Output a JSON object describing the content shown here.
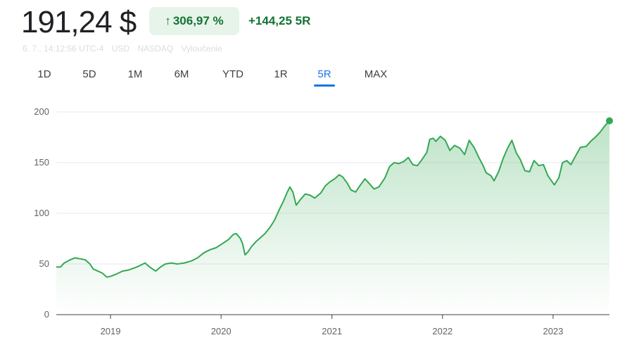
{
  "header": {
    "price": "191,24 $",
    "change_percent": "306,97 %",
    "change_arrow_icon": "arrow-up-icon",
    "change_abs": "+144,25 5R",
    "meta": {
      "datetime": "6. 7., 14:12:56 UTC-4",
      "currency": "USD",
      "exchange": "NASDAQ",
      "disclaimer": "Vyloučenie"
    }
  },
  "tabs": [
    {
      "label": "1D"
    },
    {
      "label": "5D"
    },
    {
      "label": "1M"
    },
    {
      "label": "6M"
    },
    {
      "label": "YTD"
    },
    {
      "label": "1R"
    },
    {
      "label": "5R",
      "active": true
    },
    {
      "label": "MAX"
    }
  ],
  "colors": {
    "line": "#34a853",
    "area_top": "#34a853",
    "positive_text": "#137333",
    "badge_bg": "#e6f4ea",
    "active_tab": "#1a73e8"
  },
  "chart_data": {
    "type": "area",
    "title": "",
    "xlabel": "",
    "ylabel": "",
    "ylim": [
      0,
      200
    ],
    "yticks": [
      0,
      50,
      100,
      150,
      200
    ],
    "xticks": [
      "2019",
      "2020",
      "2021",
      "2022",
      "2023"
    ],
    "xlim": [
      "2018-07-06",
      "2023-07-06"
    ],
    "grid": true,
    "series": [
      {
        "name": "",
        "points": [
          [
            "2018-07-06",
            47
          ],
          [
            "2018-07-20",
            47
          ],
          [
            "2018-08-01",
            51
          ],
          [
            "2018-08-20",
            54
          ],
          [
            "2018-09-05",
            56
          ],
          [
            "2018-09-25",
            55
          ],
          [
            "2018-10-10",
            54
          ],
          [
            "2018-10-25",
            50
          ],
          [
            "2018-11-05",
            45
          ],
          [
            "2018-11-20",
            43
          ],
          [
            "2018-12-05",
            41
          ],
          [
            "2018-12-20",
            37
          ],
          [
            "2019-01-03",
            38
          ],
          [
            "2019-01-20",
            40
          ],
          [
            "2019-02-10",
            43
          ],
          [
            "2019-03-01",
            44
          ],
          [
            "2019-03-20",
            46
          ],
          [
            "2019-04-05",
            48
          ],
          [
            "2019-04-25",
            51
          ],
          [
            "2019-05-10",
            47
          ],
          [
            "2019-05-30",
            43
          ],
          [
            "2019-06-15",
            47
          ],
          [
            "2019-07-01",
            50
          ],
          [
            "2019-07-20",
            51
          ],
          [
            "2019-08-10",
            50
          ],
          [
            "2019-09-01",
            51
          ],
          [
            "2019-09-25",
            53
          ],
          [
            "2019-10-15",
            56
          ],
          [
            "2019-11-05",
            61
          ],
          [
            "2019-11-25",
            64
          ],
          [
            "2019-12-15",
            66
          ],
          [
            "2020-01-05",
            70
          ],
          [
            "2020-01-25",
            74
          ],
          [
            "2020-02-10",
            79
          ],
          [
            "2020-02-20",
            80
          ],
          [
            "2020-03-05",
            75
          ],
          [
            "2020-03-12",
            70
          ],
          [
            "2020-03-20",
            59
          ],
          [
            "2020-03-30",
            62
          ],
          [
            "2020-04-10",
            67
          ],
          [
            "2020-04-25",
            72
          ],
          [
            "2020-05-10",
            76
          ],
          [
            "2020-05-25",
            80
          ],
          [
            "2020-06-10",
            86
          ],
          [
            "2020-06-25",
            93
          ],
          [
            "2020-07-10",
            103
          ],
          [
            "2020-07-25",
            112
          ],
          [
            "2020-08-05",
            120
          ],
          [
            "2020-08-15",
            126
          ],
          [
            "2020-08-25",
            121
          ],
          [
            "2020-09-05",
            108
          ],
          [
            "2020-09-20",
            114
          ],
          [
            "2020-10-05",
            119
          ],
          [
            "2020-10-20",
            118
          ],
          [
            "2020-11-05",
            115
          ],
          [
            "2020-11-25",
            120
          ],
          [
            "2020-12-10",
            127
          ],
          [
            "2020-12-25",
            131
          ],
          [
            "2021-01-10",
            134
          ],
          [
            "2021-01-25",
            138
          ],
          [
            "2021-02-05",
            136
          ],
          [
            "2021-02-20",
            130
          ],
          [
            "2021-03-05",
            123
          ],
          [
            "2021-03-20",
            121
          ],
          [
            "2021-04-05",
            128
          ],
          [
            "2021-04-20",
            134
          ],
          [
            "2021-05-05",
            129
          ],
          [
            "2021-05-20",
            124
          ],
          [
            "2021-06-05",
            126
          ],
          [
            "2021-06-25",
            135
          ],
          [
            "2021-07-10",
            146
          ],
          [
            "2021-07-25",
            150
          ],
          [
            "2021-08-10",
            149
          ],
          [
            "2021-08-25",
            151
          ],
          [
            "2021-09-10",
            155
          ],
          [
            "2021-09-25",
            148
          ],
          [
            "2021-10-10",
            147
          ],
          [
            "2021-10-25",
            153
          ],
          [
            "2021-11-10",
            160
          ],
          [
            "2021-11-20",
            173
          ],
          [
            "2021-12-01",
            174
          ],
          [
            "2021-12-10",
            171
          ],
          [
            "2021-12-25",
            176
          ],
          [
            "2022-01-10",
            172
          ],
          [
            "2022-01-25",
            162
          ],
          [
            "2022-02-10",
            167
          ],
          [
            "2022-02-28",
            164
          ],
          [
            "2022-03-15",
            158
          ],
          [
            "2022-03-30",
            172
          ],
          [
            "2022-04-15",
            165
          ],
          [
            "2022-05-01",
            155
          ],
          [
            "2022-05-15",
            147
          ],
          [
            "2022-05-25",
            140
          ],
          [
            "2022-06-10",
            137
          ],
          [
            "2022-06-20",
            132
          ],
          [
            "2022-07-05",
            141
          ],
          [
            "2022-07-20",
            154
          ],
          [
            "2022-08-05",
            165
          ],
          [
            "2022-08-18",
            172
          ],
          [
            "2022-09-01",
            160
          ],
          [
            "2022-09-15",
            153
          ],
          [
            "2022-09-30",
            142
          ],
          [
            "2022-10-15",
            141
          ],
          [
            "2022-10-30",
            152
          ],
          [
            "2022-11-15",
            147
          ],
          [
            "2022-11-30",
            148
          ],
          [
            "2022-12-15",
            137
          ],
          [
            "2023-01-05",
            128
          ],
          [
            "2023-01-20",
            135
          ],
          [
            "2023-02-01",
            150
          ],
          [
            "2023-02-15",
            152
          ],
          [
            "2023-03-01",
            148
          ],
          [
            "2023-03-15",
            156
          ],
          [
            "2023-04-01",
            165
          ],
          [
            "2023-04-20",
            166
          ],
          [
            "2023-05-05",
            171
          ],
          [
            "2023-05-20",
            175
          ],
          [
            "2023-06-05",
            180
          ],
          [
            "2023-06-20",
            186
          ],
          [
            "2023-07-06",
            191.24
          ]
        ]
      }
    ]
  }
}
